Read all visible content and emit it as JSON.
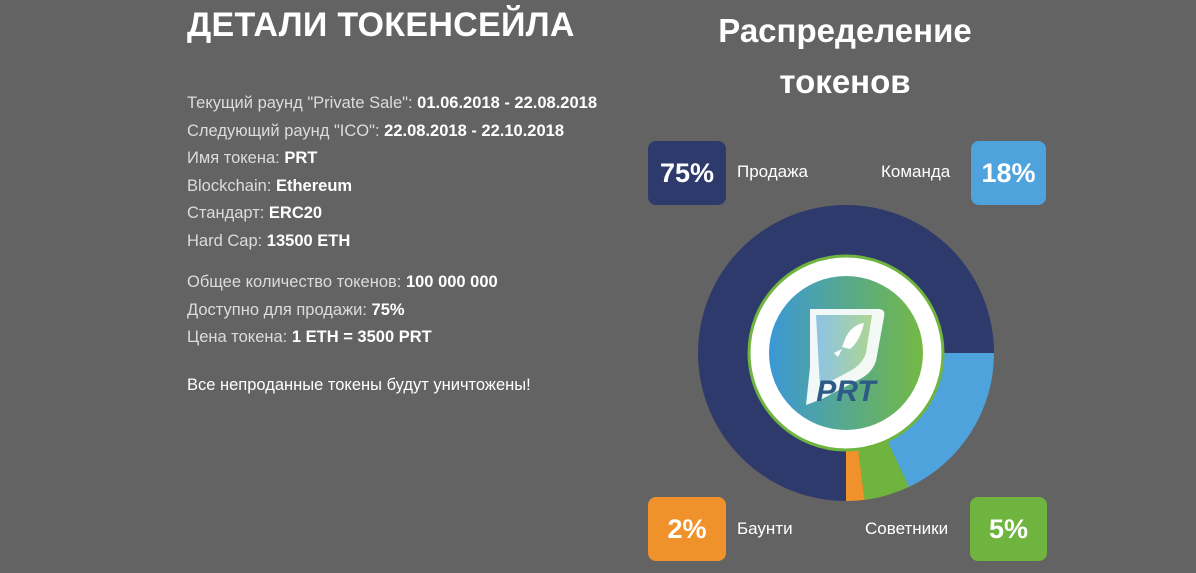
{
  "left": {
    "title": "ДЕТАЛИ ТОКЕНСЕЙЛА",
    "rows": [
      {
        "label": "Текущий раунд \"Private Sale\": ",
        "value": "01.06.2018 - 22.08.2018"
      },
      {
        "label": "Следующий раунд \"ICO\": ",
        "value": "22.08.2018 - 22.10.2018"
      },
      {
        "label": "Имя токена: ",
        "value": "PRT"
      },
      {
        "label": "Blockchain: ",
        "value": "Ethereum"
      },
      {
        "label": "Стандарт: ",
        "value": "ERC20"
      },
      {
        "label": "Hard Cap: ",
        "value": "13500 ETH"
      }
    ],
    "rows2": [
      {
        "label": "Общее количество токенов: ",
        "value": "100 000 000"
      },
      {
        "label": "Доступно для продажи: ",
        "value": "75%"
      },
      {
        "label": "Цена токена: ",
        "value": "1 ETH = 3500 PRT"
      }
    ],
    "note": "Все непроданные токены будут уничтожены!"
  },
  "right": {
    "title": "Распределение токенов",
    "logo_text": "PRT"
  },
  "chart_data": {
    "type": "pie",
    "title": "Распределение токенов",
    "slices": [
      {
        "label": "Продажа",
        "value": 75,
        "display": "75%",
        "color": "#2e3a6b"
      },
      {
        "label": "Команда",
        "value": 18,
        "display": "18%",
        "color": "#4fa3dc"
      },
      {
        "label": "Советники",
        "value": 5,
        "display": "5%",
        "color": "#6fb43f"
      },
      {
        "label": "Баунти",
        "value": 2,
        "display": "2%",
        "color": "#f0922b"
      }
    ]
  }
}
